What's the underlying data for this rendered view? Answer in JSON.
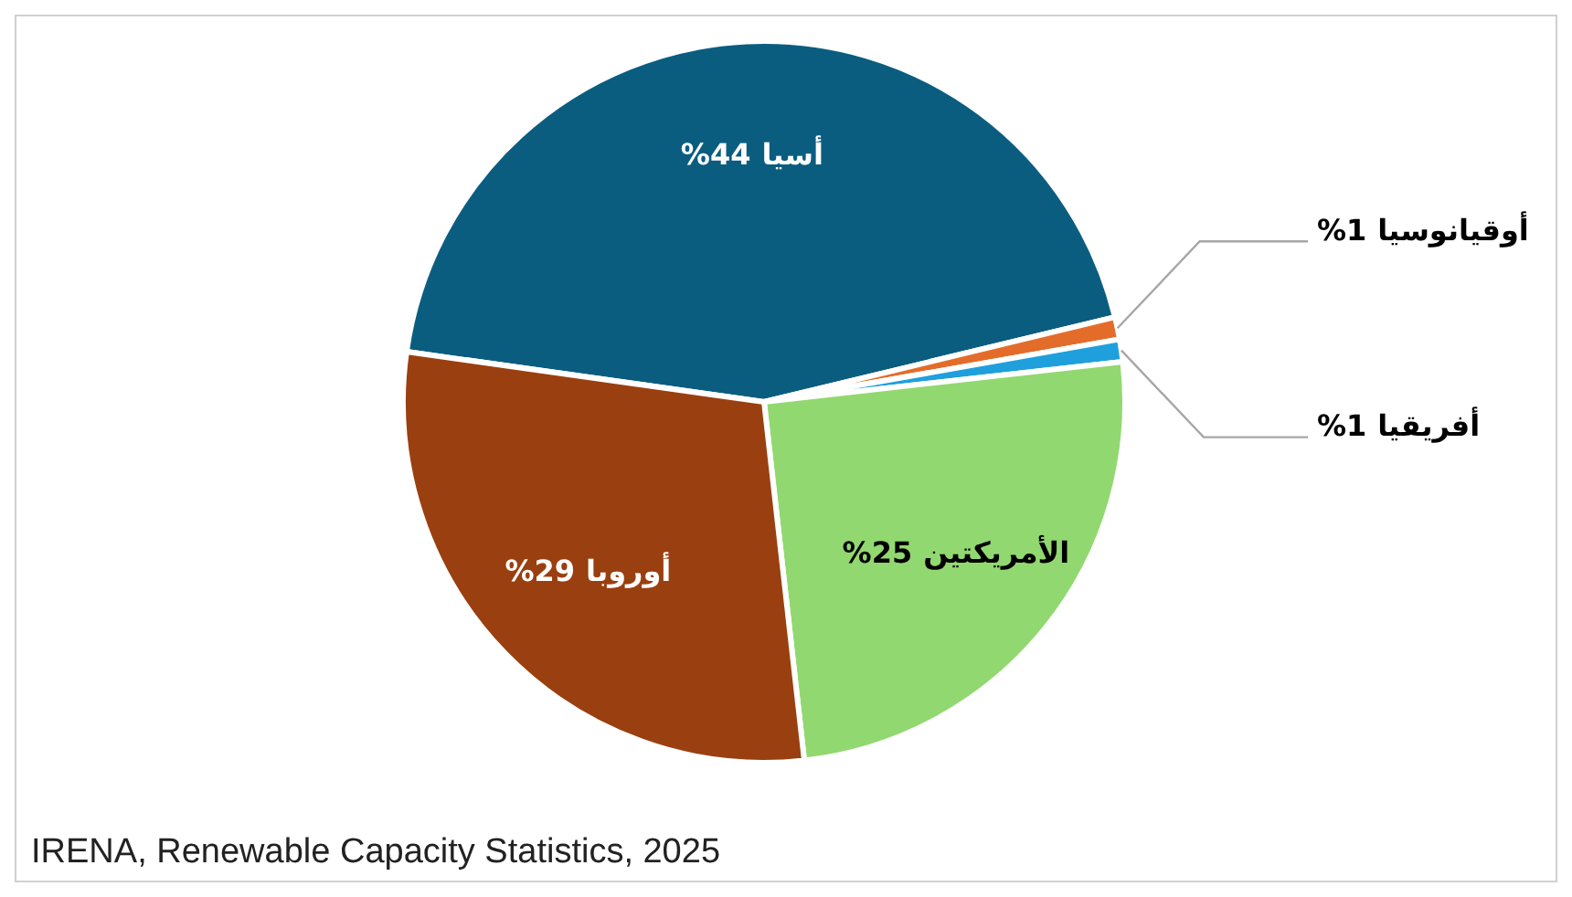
{
  "chart_data": {
    "type": "pie",
    "categories": [
      "أسيا",
      "أوقيانوسيا",
      "أفريقيا",
      "الأمريكتين",
      "أوروبا"
    ],
    "values": [
      44,
      1,
      1,
      25,
      29
    ],
    "value_labels": [
      "%44",
      "%1",
      "%1",
      "%25",
      "%29"
    ],
    "colors": [
      "#0b5d80",
      "#e46c2a",
      "#1fa0dc",
      "#92d870",
      "#9a3f0f"
    ],
    "legend": false,
    "annotations": [
      "IRENA, Renewable Capacity Statistics, 2025"
    ]
  }
}
